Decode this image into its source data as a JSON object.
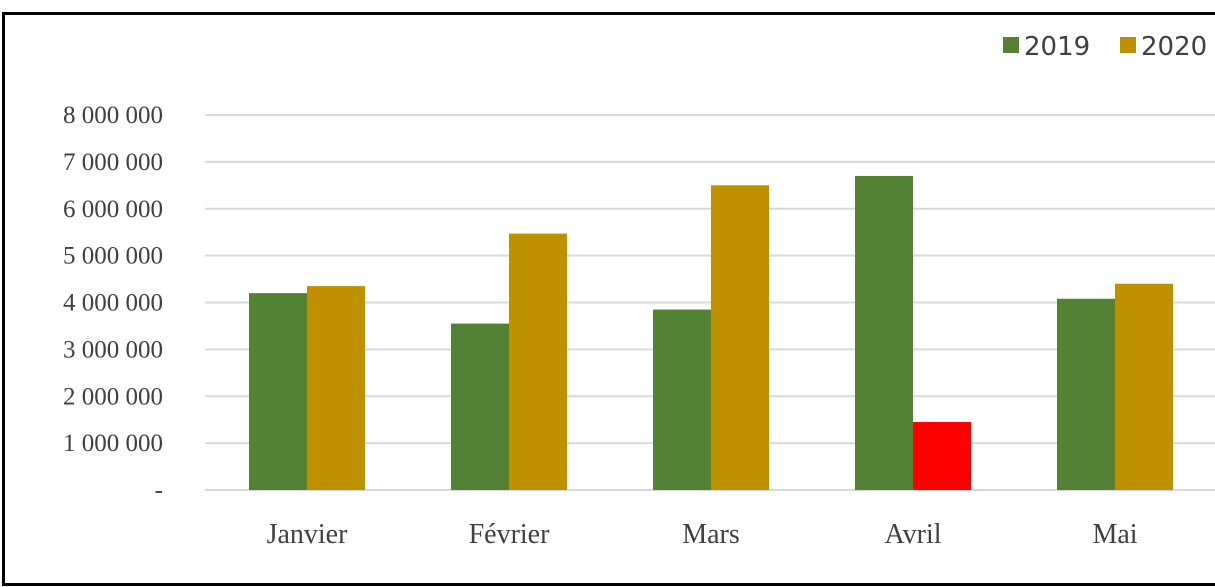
{
  "chart_data": {
    "type": "bar",
    "categories": [
      "Janvier",
      "Février",
      "Mars",
      "Avril",
      "Mai"
    ],
    "series": [
      {
        "name": "2019",
        "color": "#548235",
        "values": [
          4200000,
          3550000,
          3850000,
          6700000,
          4080000
        ]
      },
      {
        "name": "2020",
        "color": "#BF9000",
        "values": [
          4350000,
          5470000,
          6500000,
          1450000,
          4400000
        ],
        "highlight": {
          "index": 3,
          "color": "#FF0000"
        }
      }
    ],
    "y_ticks": [
      "-",
      "1 000 000",
      "2 000 000",
      "3 000 000",
      "4 000 000",
      "5 000 000",
      "6 000 000",
      "7 000 000",
      "8 000 000"
    ],
    "ylim": [
      0,
      8000000
    ],
    "grid": true,
    "legend_position": "top-right",
    "title": "",
    "xlabel": "",
    "ylabel": ""
  }
}
